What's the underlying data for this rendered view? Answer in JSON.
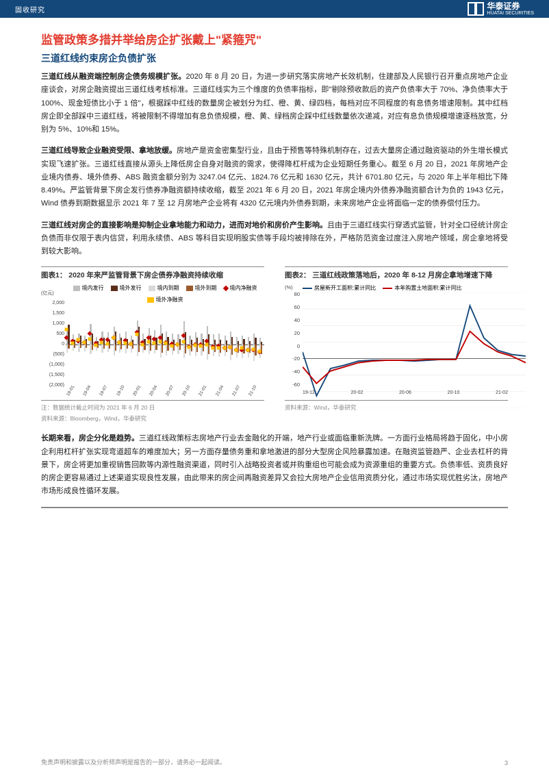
{
  "header": {
    "category": "固收研究",
    "logo_cn": "华泰证券",
    "logo_en": "HUATAI SECURITIES"
  },
  "title_h1": "监管政策多措并举给房企扩张戴上\"紧箍咒\"",
  "title_h2": "三道红线约束房企负债扩张",
  "paragraphs": [
    {
      "bold": "三道红线从融资端控制房企债务规模扩张。",
      "text": "2020 年 8 月 20 日，为进一步研究落实房地产长效机制，住建部及人民银行召开重点房地产企业座谈会，对房企融资提出三道红线考核标准。三道红线实为三个维度的负债率指标，即\"剔除预收款后的资产负债率大于 70%、净负债率大于 100%、现金短债比小于 1 倍\"，根据踩中红线的数量房企被划分为红、橙、黄、绿四档，每档对应不同程度的有息债务增速限制。其中红档房企即全部踩中三道红线，将被限制不得增加有息负债规模，橙、黄、绿档房企踩中红线数量依次递减，对应有息负债规模增速逐档放宽，分别为 5%、10%和 15%。"
    },
    {
      "bold": "三道红线导致企业融资受限、拿地放缓。",
      "text": "房地产是资金密集型行业，且由于预售等特殊机制存在，过去大量房企通过融资驱动的外生增长模式实现飞速扩张。三道红线直接从源头上降低房企自身对融资的需求，使得降杠杆成为企业短期任务重心。截至 6 月 20 日，2021 年房地产企业境内债券、境外债券、ABS 融资金额分别为 3247.04 亿元、1824.76 亿元和 1630 亿元，共计 6701.80 亿元，与 2020 年上半年相比下降 8.49%。严监管背景下房企发行债券净融资额持续收缩，截至 2021 年 6 月 20 日，2021 年房企境内外债券净融资额合计为负的 1943 亿元，Wind 债券到期数据显示 2021 年 7 至 12 月房地产企业将有 4320 亿元境内外债券到期，未来房地产企业将面临一定的债券偿付压力。"
    },
    {
      "bold": "三道红线对房企的直接影响是抑制企业拿地能力和动力，进而对地价和房价产生影响。",
      "text": "且由于三道红线实行穿透式监管，针对全口径统计房企负债而非仅限于表内信贷，利用永续债、ABS 等科目实现明股实债等手段均被排除在外，严格防范资金过度注入房地产领域，房企拿地将受到较大影响。"
    }
  ],
  "chart1": {
    "title": "图表1：   2020 年来严监管背景下房企债券净融资持续收缩",
    "type": "bar_line",
    "unit": "(亿元)",
    "legend": [
      {
        "label": "境内发行",
        "color": "#bfbfbf",
        "shape": "sw"
      },
      {
        "label": "境外发行",
        "color": "#5b2e1a",
        "shape": "sw"
      },
      {
        "label": "境内到期",
        "color": "#d9d9d9",
        "shape": "sw"
      },
      {
        "label": "境外到期",
        "color": "#9b5a2e",
        "shape": "sw"
      },
      {
        "label": "境内净融资",
        "color": "#c00000",
        "shape": "di"
      },
      {
        "label": "境外净融资",
        "color": "#ffc000",
        "shape": "sq"
      }
    ],
    "y_ticks": [
      "2,000",
      "1,500",
      "1,000",
      "500",
      "0",
      "(500)",
      "(1,000)",
      "(1,500)",
      "(2,000)"
    ],
    "ylim": [
      -2000,
      2000
    ],
    "x_labels": [
      "19-01",
      "19-04",
      "19-07",
      "19-10",
      "20-01",
      "20-04",
      "20-07",
      "20-10",
      "21-01",
      "21-04",
      "21-07",
      "21-10"
    ],
    "series": {
      "dom_issue": [
        700,
        450,
        500,
        400,
        950,
        350,
        600,
        550,
        800,
        500,
        600,
        400,
        1100,
        500,
        750,
        650,
        900,
        600,
        500,
        450,
        1050,
        400,
        550,
        500,
        850,
        450,
        500,
        400,
        600,
        350,
        400,
        350,
        500,
        300
      ],
      "ovs_issue": [
        900,
        200,
        400,
        250,
        500,
        150,
        300,
        200,
        600,
        300,
        250,
        200,
        800,
        250,
        400,
        300,
        500,
        350,
        200,
        250,
        550,
        200,
        300,
        250,
        450,
        200,
        200,
        180,
        350,
        150,
        250,
        150,
        300,
        120
      ],
      "dom_due": [
        -400,
        -300,
        -350,
        -320,
        -450,
        -300,
        -380,
        -350,
        -500,
        -400,
        -420,
        -380,
        -550,
        -400,
        -450,
        -420,
        -600,
        -500,
        -480,
        -450,
        -650,
        -500,
        -550,
        -520,
        -700,
        -550,
        -580,
        -550,
        -720,
        -600,
        -650,
        -620,
        -750,
        -650
      ],
      "ovs_due": [
        -200,
        -150,
        -180,
        -160,
        -250,
        -180,
        -200,
        -190,
        -300,
        -220,
        -200,
        -190,
        -350,
        -250,
        -280,
        -260,
        -380,
        -300,
        -280,
        -270,
        -420,
        -320,
        -350,
        -330,
        -450,
        -360,
        -380,
        -360,
        -480,
        -400,
        -420,
        -400,
        -520,
        -450
      ],
      "dom_net": [
        300,
        150,
        150,
        80,
        500,
        50,
        220,
        200,
        300,
        100,
        180,
        20,
        550,
        100,
        300,
        230,
        300,
        100,
        20,
        0,
        400,
        -100,
        0,
        -20,
        150,
        -100,
        -80,
        -150,
        -120,
        -250,
        -250,
        -270,
        -250,
        -350
      ],
      "ovs_net": [
        700,
        50,
        220,
        90,
        250,
        -30,
        100,
        10,
        300,
        80,
        50,
        10,
        450,
        0,
        120,
        40,
        120,
        50,
        -80,
        -20,
        130,
        -120,
        -50,
        -80,
        0,
        -160,
        -180,
        -180,
        -130,
        -250,
        -170,
        -250,
        -220,
        -330
      ]
    },
    "note": "注：数据统计截止时间为 2021 年 6 月 20 日",
    "source": "资料来源：Bloomberg，Wind，华泰研究"
  },
  "chart2": {
    "title": "图表2：   三道红线政策落地后，2020 年 8-12 月房企拿地增速下降",
    "type": "line",
    "unit": "(%)",
    "legend": [
      {
        "label": "房屋新开工面积:累计同比",
        "color": "#14487a"
      },
      {
        "label": "本年购置土地面积:累计同比",
        "color": "#c00000"
      }
    ],
    "y_ticks": [
      "80",
      "60",
      "40",
      "20",
      "0",
      "-20",
      "-40",
      "-60"
    ],
    "ylim": [
      -60,
      80
    ],
    "x_labels": [
      "19-12",
      "20-02",
      "20-06",
      "20-10",
      "21-02"
    ],
    "series": {
      "new_start": [
        8,
        -45,
        -12,
        -8,
        -3,
        -2,
        -2,
        -2,
        -3,
        -2,
        -1,
        -1,
        64,
        25,
        10,
        5,
        3
      ],
      "land_buy": [
        -10,
        -30,
        -15,
        -10,
        -5,
        -3,
        -2,
        -2,
        -2,
        -1,
        -1,
        -1,
        33,
        18,
        8,
        3,
        -5
      ]
    },
    "source": "资料来源：Wind，华泰研究"
  },
  "para_after": {
    "bold": "长期来看，房企分化是趋势。",
    "text": "三道红线政策标志房地产行业去金融化的开端，地产行业或面临重新洗牌。一方面行业格局将趋于固化，中小房企利用杠杆扩张实现弯道超车的难度加大；另一方面存量债务重和拿地激进的部分大型房企风险暴露加速。在融资监管趋严、企业去杠杆的背景下，房企将更加重视销售回款等内源性融资渠道，同时引入战略投资者或并购重组也可能会成为资源重组的重要方式。负债率低、资质良好的房企更容易通过上述渠道实现良性发展，由此带来的房企间再融资差异又会拉大房地产企业信用资质分化，通过市场实现优胜劣汰，房地产市场形成良性循环发展。"
  },
  "footer": {
    "disclaimer": "免责声明和披露以及分析师声明是报告的一部分，请务必一起阅读。",
    "page": "3"
  }
}
